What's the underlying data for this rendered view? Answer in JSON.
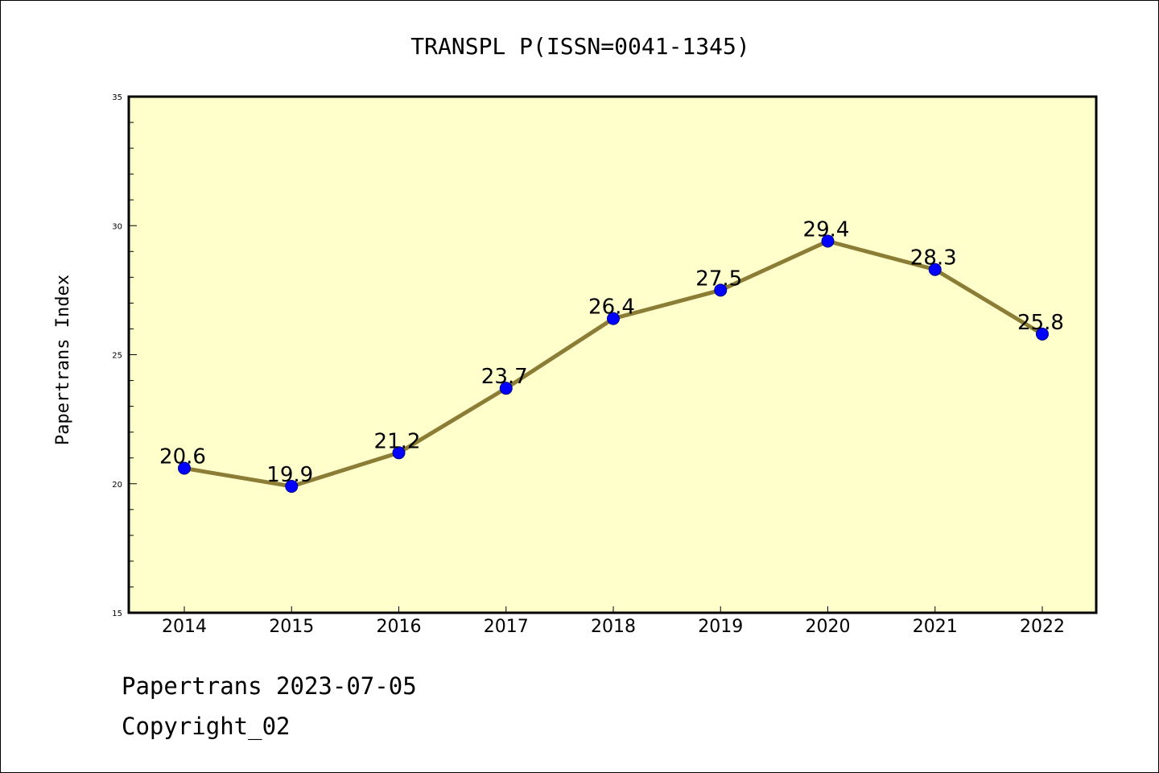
{
  "colors": {
    "plot_background": "#ffffcc",
    "line": "#8b7d35",
    "marker": "#0000ff",
    "axis": "#000000"
  },
  "chart_data": {
    "type": "line",
    "title": "TRANSPL P(ISSN=0041-1345)",
    "xlabel": "",
    "ylabel": "Papertrans Index",
    "x": [
      "2014",
      "2015",
      "2016",
      "2017",
      "2018",
      "2019",
      "2020",
      "2021",
      "2022"
    ],
    "series": [
      {
        "values": [
          20.6,
          19.9,
          21.2,
          23.7,
          26.4,
          27.5,
          29.4,
          28.3,
          25.8
        ],
        "labels": [
          "20.6",
          "19.9",
          "21.2",
          "23.7",
          "26.4",
          "27.5",
          "29.4",
          "28.3",
          "25.8"
        ]
      }
    ],
    "ylim": [
      15,
      35
    ],
    "yticks": [
      15,
      20,
      25,
      30,
      35
    ],
    "grid": false,
    "legend": "none"
  },
  "footer": {
    "date_line": "Papertrans 2023-07-05",
    "copyright": "Copyright_02"
  }
}
